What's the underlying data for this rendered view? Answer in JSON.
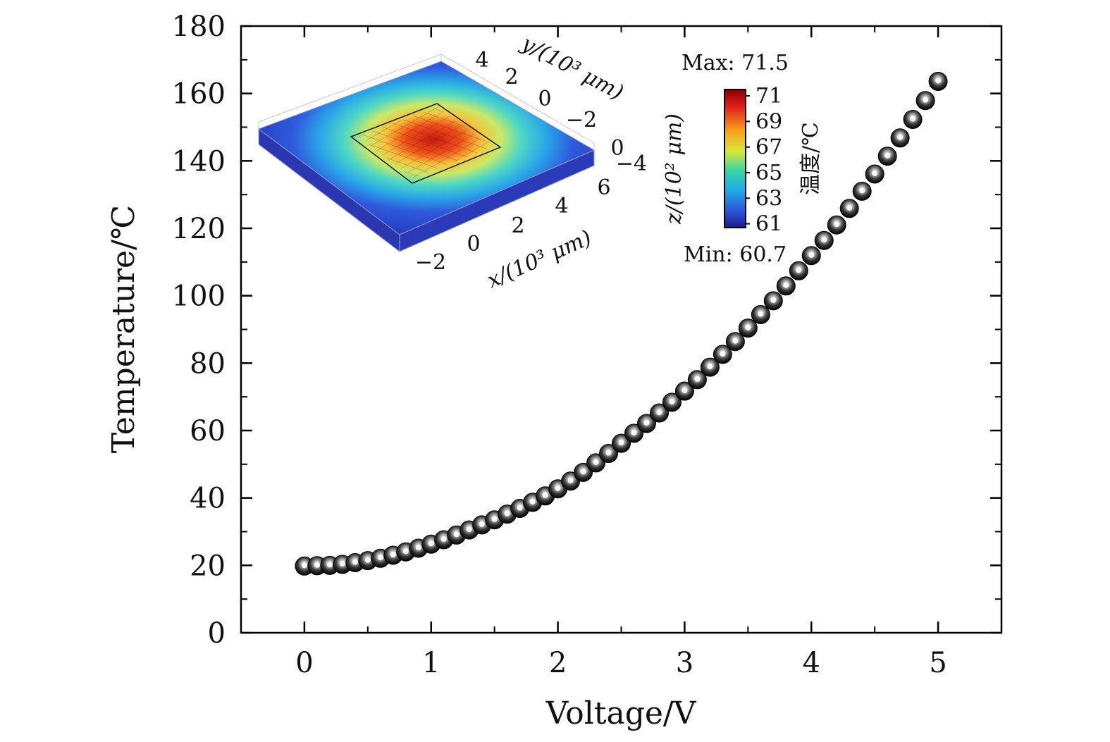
{
  "chart_data": {
    "type": "scatter",
    "title": "",
    "xlabel": "Voltage/V",
    "ylabel": "Temperature/℃",
    "xlim": [
      -0.5,
      5.5
    ],
    "ylim": [
      0,
      180
    ],
    "x_ticks": [
      "0",
      "1",
      "2",
      "3",
      "4",
      "5"
    ],
    "y_ticks": [
      "0",
      "20",
      "40",
      "60",
      "80",
      "100",
      "120",
      "140",
      "160",
      "180"
    ],
    "series": [
      {
        "name": "Temperature",
        "x": [
          0,
          0.1,
          0.2,
          0.3,
          0.4,
          0.5,
          0.6,
          0.7,
          0.8,
          0.9,
          1.0,
          1.1,
          1.2,
          1.3,
          1.4,
          1.5,
          1.6,
          1.7,
          1.8,
          1.9,
          2.0,
          2.1,
          2.2,
          2.3,
          2.4,
          2.5,
          2.6,
          2.7,
          2.8,
          2.9,
          3.0,
          3.1,
          3.2,
          3.3,
          3.4,
          3.5,
          3.6,
          3.7,
          3.8,
          3.9,
          4.0,
          4.1,
          4.2,
          4.3,
          4.4,
          4.5,
          4.6,
          4.7,
          4.8,
          4.9,
          5.0
        ],
        "y": [
          19.8,
          19.9,
          20.0,
          20.3,
          20.8,
          21.4,
          22.1,
          23.0,
          24.0,
          25.1,
          26.3,
          27.6,
          29.0,
          30.5,
          32.0,
          33.5,
          35.2,
          36.9,
          38.7,
          40.6,
          42.7,
          45.0,
          47.6,
          50.4,
          53.2,
          56.2,
          59.2,
          62.1,
          65.2,
          68.4,
          71.7,
          75.1,
          78.8,
          82.6,
          86.4,
          90.4,
          94.4,
          98.5,
          102.9,
          107.4,
          111.9,
          116.4,
          121.0,
          125.9,
          131.0,
          136.1,
          141.4,
          146.8,
          152.3,
          157.9,
          163.6
        ]
      }
    ],
    "inset": {
      "max_label": "Max: 71.5",
      "min_label": "Min: 60.7",
      "colorbar_title": "温度/℃",
      "colorbar_ticks": [
        "71",
        "69",
        "67",
        "65",
        "63",
        "61"
      ],
      "x_axis_label": "x/(10³ μm)",
      "y_axis_label": "y/(10³ μm)",
      "z_axis_label": "z/(10² μm)",
      "x_ticks": [
        "−2",
        "0",
        "2",
        "4",
        "6"
      ],
      "y_ticks": [
        "4",
        "2",
        "0",
        "−2",
        "−4"
      ],
      "z_ticks": [
        "0"
      ]
    }
  }
}
